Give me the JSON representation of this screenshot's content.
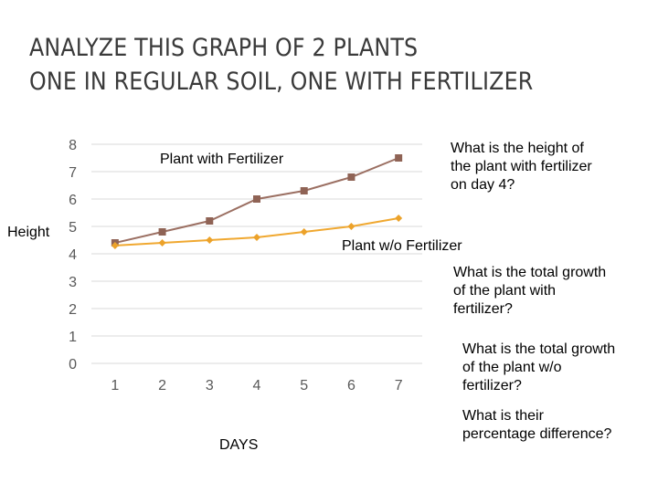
{
  "slide": {
    "title_line1": "ANALYZE THIS GRAPH OF 2 PLANTS",
    "title_line2": "ONE IN REGULAR SOIL, ONE WITH FERTILIZER",
    "questions": [
      [
        "What is the height of",
        "the plant with fertilizer",
        "on day 4?"
      ],
      [
        "What is the total growth",
        "of the plant with",
        "fertilizer?"
      ],
      [
        "What is the total growth",
        "of the plant w/o",
        "fertilizer?"
      ],
      [
        "What is their",
        "percentage difference?"
      ]
    ]
  },
  "colors": {
    "fertilizer": "#9b6f62",
    "fertilizer_marker": "#8f6355",
    "no_fertilizer": "#f0a830",
    "no_fertilizer_marker": "#eca22a",
    "grid": "#d9d9d9",
    "axis_text": "#595959"
  },
  "chart_data": {
    "type": "line",
    "x": [
      1,
      2,
      3,
      4,
      5,
      6,
      7
    ],
    "series": [
      {
        "name": "Plant with Fertilizer",
        "values": [
          4.4,
          4.8,
          5.2,
          6.0,
          6.3,
          6.8,
          7.5
        ],
        "marker": "square"
      },
      {
        "name": "Plant w/o Fertilizer",
        "values": [
          4.3,
          4.4,
          4.5,
          4.6,
          4.8,
          5.0,
          5.3
        ],
        "marker": "diamond"
      }
    ],
    "ylabel": "Height",
    "xlabel": "DAYS",
    "ylim": [
      0,
      8
    ],
    "yticks": [
      0,
      1,
      2,
      3,
      4,
      5,
      6,
      7,
      8
    ],
    "xticks": [
      1,
      2,
      3,
      4,
      5,
      6,
      7
    ],
    "grid": "horizontal"
  }
}
